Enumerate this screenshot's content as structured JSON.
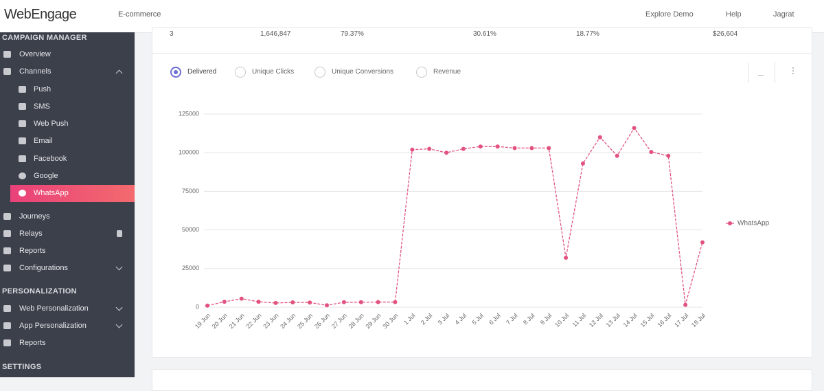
{
  "header": {
    "logo": "WebEngage",
    "project": "E-commerce",
    "nav": [
      "Explore Demo",
      "Help",
      "Jagrat"
    ]
  },
  "sidebar": {
    "campaign_title": "CAMPAIGN MANAGER",
    "campaign_items": [
      "Overview",
      "Channels"
    ],
    "channels": [
      "Push",
      "SMS",
      "Web Push",
      "Email",
      "Facebook",
      "Google",
      "WhatsApp"
    ],
    "more_items": [
      "Journeys",
      "Relays",
      "Reports",
      "Configurations"
    ],
    "personalization_title": "PERSONALIZATION",
    "personalization_items": [
      "Web Personalization",
      "App Personalization",
      "Reports"
    ],
    "settings_title": "SETTINGS"
  },
  "table": {
    "row": [
      "3",
      "1,646,847",
      "79.37%",
      "30.61%",
      "18.77%",
      "$26,604"
    ]
  },
  "tabs": [
    "Delivered",
    "Unique Clicks",
    "Unique Conversions",
    "Revenue"
  ],
  "chart_data": {
    "type": "line",
    "categories": [
      "19 Jun",
      "20 Jun",
      "21 Jun",
      "22 Jun",
      "23 Jun",
      "24 Jun",
      "25 Jun",
      "26 Jun",
      "27 Jun",
      "28 Jun",
      "29 Jun",
      "30 Jun",
      "1 Jul",
      "2 Jul",
      "3 Jul",
      "4 Jul",
      "5 Jul",
      "6 Jul",
      "7 Jul",
      "8 Jul",
      "9 Jul",
      "10 Jul",
      "11 Jul",
      "12 Jul",
      "13 Jul",
      "14 Jul",
      "15 Jul",
      "16 Jul",
      "17 Jul",
      "18 Jul"
    ],
    "series": [
      {
        "name": "WhatsApp",
        "color": "#e2527f",
        "values": [
          1000,
          3500,
          5500,
          3500,
          2700,
          3100,
          3000,
          1200,
          3200,
          3200,
          3300,
          3300,
          102000,
          102500,
          100000,
          102500,
          104000,
          104000,
          103000,
          103000,
          103000,
          32000,
          93000,
          110000,
          98000,
          116000,
          100500,
          98000,
          1500,
          42000
        ]
      }
    ],
    "ylim": [
      0,
      125000
    ],
    "yticks": [
      0,
      25000,
      50000,
      75000,
      100000,
      125000
    ],
    "grid": true,
    "legend": "right"
  }
}
